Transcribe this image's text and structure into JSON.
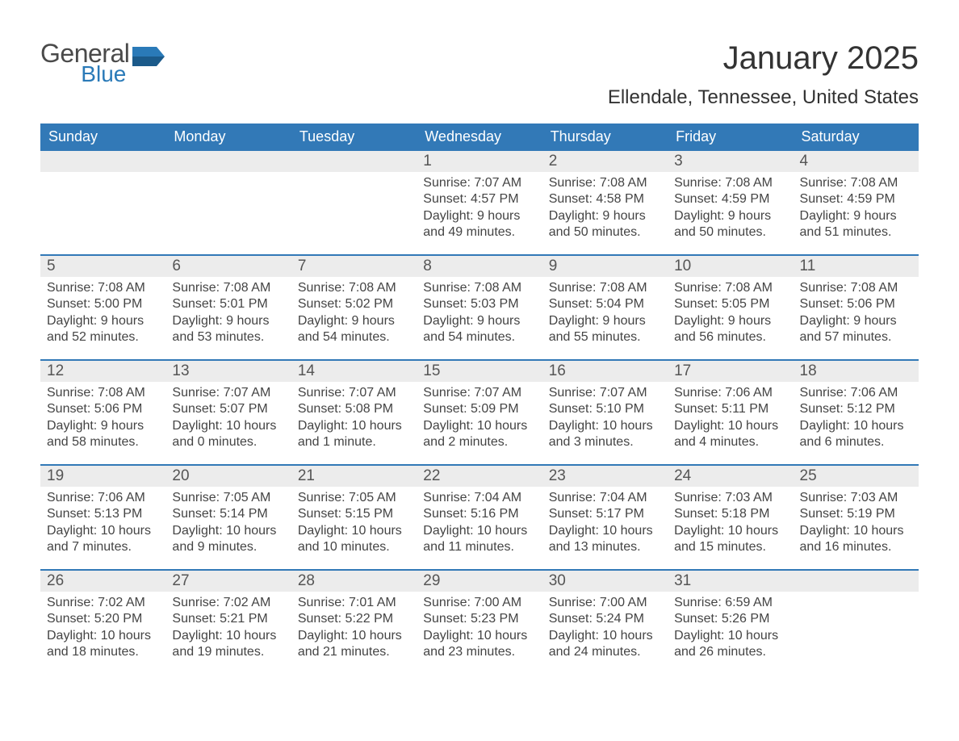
{
  "colors": {
    "header_bg": "#3279b7",
    "header_text": "#ffffff",
    "daynum_bg": "#ececec",
    "row_border": "#3279b7",
    "body_text": "#444444",
    "title_text": "#333333",
    "logo_gray": "#4a4a4a",
    "logo_blue": "#2a7ab8",
    "page_bg": "#ffffff"
  },
  "typography": {
    "month_title_pt": 40,
    "location_pt": 24,
    "weekday_pt": 18,
    "daynum_pt": 19,
    "body_pt": 16,
    "font_family": "Arial"
  },
  "logo": {
    "general": "General",
    "blue": "Blue"
  },
  "title": "January 2025",
  "location": "Ellendale, Tennessee, United States",
  "weekdays": [
    "Sunday",
    "Monday",
    "Tuesday",
    "Wednesday",
    "Thursday",
    "Friday",
    "Saturday"
  ],
  "weeks": [
    [
      null,
      null,
      null,
      {
        "n": "1",
        "sunrise": "Sunrise: 7:07 AM",
        "sunset": "Sunset: 4:57 PM",
        "day": "Daylight: 9 hours and 49 minutes."
      },
      {
        "n": "2",
        "sunrise": "Sunrise: 7:08 AM",
        "sunset": "Sunset: 4:58 PM",
        "day": "Daylight: 9 hours and 50 minutes."
      },
      {
        "n": "3",
        "sunrise": "Sunrise: 7:08 AM",
        "sunset": "Sunset: 4:59 PM",
        "day": "Daylight: 9 hours and 50 minutes."
      },
      {
        "n": "4",
        "sunrise": "Sunrise: 7:08 AM",
        "sunset": "Sunset: 4:59 PM",
        "day": "Daylight: 9 hours and 51 minutes."
      }
    ],
    [
      {
        "n": "5",
        "sunrise": "Sunrise: 7:08 AM",
        "sunset": "Sunset: 5:00 PM",
        "day": "Daylight: 9 hours and 52 minutes."
      },
      {
        "n": "6",
        "sunrise": "Sunrise: 7:08 AM",
        "sunset": "Sunset: 5:01 PM",
        "day": "Daylight: 9 hours and 53 minutes."
      },
      {
        "n": "7",
        "sunrise": "Sunrise: 7:08 AM",
        "sunset": "Sunset: 5:02 PM",
        "day": "Daylight: 9 hours and 54 minutes."
      },
      {
        "n": "8",
        "sunrise": "Sunrise: 7:08 AM",
        "sunset": "Sunset: 5:03 PM",
        "day": "Daylight: 9 hours and 54 minutes."
      },
      {
        "n": "9",
        "sunrise": "Sunrise: 7:08 AM",
        "sunset": "Sunset: 5:04 PM",
        "day": "Daylight: 9 hours and 55 minutes."
      },
      {
        "n": "10",
        "sunrise": "Sunrise: 7:08 AM",
        "sunset": "Sunset: 5:05 PM",
        "day": "Daylight: 9 hours and 56 minutes."
      },
      {
        "n": "11",
        "sunrise": "Sunrise: 7:08 AM",
        "sunset": "Sunset: 5:06 PM",
        "day": "Daylight: 9 hours and 57 minutes."
      }
    ],
    [
      {
        "n": "12",
        "sunrise": "Sunrise: 7:08 AM",
        "sunset": "Sunset: 5:06 PM",
        "day": "Daylight: 9 hours and 58 minutes."
      },
      {
        "n": "13",
        "sunrise": "Sunrise: 7:07 AM",
        "sunset": "Sunset: 5:07 PM",
        "day": "Daylight: 10 hours and 0 minutes."
      },
      {
        "n": "14",
        "sunrise": "Sunrise: 7:07 AM",
        "sunset": "Sunset: 5:08 PM",
        "day": "Daylight: 10 hours and 1 minute."
      },
      {
        "n": "15",
        "sunrise": "Sunrise: 7:07 AM",
        "sunset": "Sunset: 5:09 PM",
        "day": "Daylight: 10 hours and 2 minutes."
      },
      {
        "n": "16",
        "sunrise": "Sunrise: 7:07 AM",
        "sunset": "Sunset: 5:10 PM",
        "day": "Daylight: 10 hours and 3 minutes."
      },
      {
        "n": "17",
        "sunrise": "Sunrise: 7:06 AM",
        "sunset": "Sunset: 5:11 PM",
        "day": "Daylight: 10 hours and 4 minutes."
      },
      {
        "n": "18",
        "sunrise": "Sunrise: 7:06 AM",
        "sunset": "Sunset: 5:12 PM",
        "day": "Daylight: 10 hours and 6 minutes."
      }
    ],
    [
      {
        "n": "19",
        "sunrise": "Sunrise: 7:06 AM",
        "sunset": "Sunset: 5:13 PM",
        "day": "Daylight: 10 hours and 7 minutes."
      },
      {
        "n": "20",
        "sunrise": "Sunrise: 7:05 AM",
        "sunset": "Sunset: 5:14 PM",
        "day": "Daylight: 10 hours and 9 minutes."
      },
      {
        "n": "21",
        "sunrise": "Sunrise: 7:05 AM",
        "sunset": "Sunset: 5:15 PM",
        "day": "Daylight: 10 hours and 10 minutes."
      },
      {
        "n": "22",
        "sunrise": "Sunrise: 7:04 AM",
        "sunset": "Sunset: 5:16 PM",
        "day": "Daylight: 10 hours and 11 minutes."
      },
      {
        "n": "23",
        "sunrise": "Sunrise: 7:04 AM",
        "sunset": "Sunset: 5:17 PM",
        "day": "Daylight: 10 hours and 13 minutes."
      },
      {
        "n": "24",
        "sunrise": "Sunrise: 7:03 AM",
        "sunset": "Sunset: 5:18 PM",
        "day": "Daylight: 10 hours and 15 minutes."
      },
      {
        "n": "25",
        "sunrise": "Sunrise: 7:03 AM",
        "sunset": "Sunset: 5:19 PM",
        "day": "Daylight: 10 hours and 16 minutes."
      }
    ],
    [
      {
        "n": "26",
        "sunrise": "Sunrise: 7:02 AM",
        "sunset": "Sunset: 5:20 PM",
        "day": "Daylight: 10 hours and 18 minutes."
      },
      {
        "n": "27",
        "sunrise": "Sunrise: 7:02 AM",
        "sunset": "Sunset: 5:21 PM",
        "day": "Daylight: 10 hours and 19 minutes."
      },
      {
        "n": "28",
        "sunrise": "Sunrise: 7:01 AM",
        "sunset": "Sunset: 5:22 PM",
        "day": "Daylight: 10 hours and 21 minutes."
      },
      {
        "n": "29",
        "sunrise": "Sunrise: 7:00 AM",
        "sunset": "Sunset: 5:23 PM",
        "day": "Daylight: 10 hours and 23 minutes."
      },
      {
        "n": "30",
        "sunrise": "Sunrise: 7:00 AM",
        "sunset": "Sunset: 5:24 PM",
        "day": "Daylight: 10 hours and 24 minutes."
      },
      {
        "n": "31",
        "sunrise": "Sunrise: 6:59 AM",
        "sunset": "Sunset: 5:26 PM",
        "day": "Daylight: 10 hours and 26 minutes."
      },
      null
    ]
  ]
}
